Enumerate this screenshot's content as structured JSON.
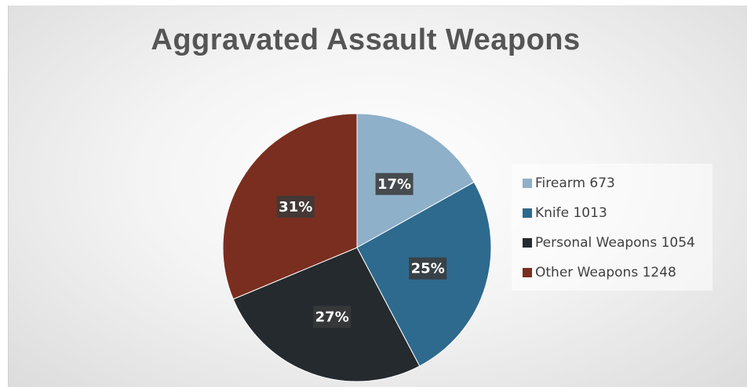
{
  "chart_data": {
    "type": "pie",
    "title": "Aggravated Assault Weapons",
    "slices": [
      {
        "label": "Firearm",
        "value": 673,
        "percent_label": "17%",
        "color": "#8fb0c9"
      },
      {
        "label": "Knife",
        "value": 1013,
        "percent_label": "25%",
        "color": "#2e6a8e"
      },
      {
        "label": "Personal Weapons",
        "value": 1054,
        "percent_label": "27%",
        "color": "#252a2f"
      },
      {
        "label": "Other Weapons",
        "value": 1248,
        "percent_label": "31%",
        "color": "#7a2e1f"
      }
    ],
    "legend": {
      "position": "right",
      "entries": [
        "Firearm 673",
        "Knife 1013",
        "Personal Weapons 1054",
        "Other Weapons 1248"
      ]
    },
    "start_angle": "12 o'clock",
    "direction": "clockwise"
  }
}
